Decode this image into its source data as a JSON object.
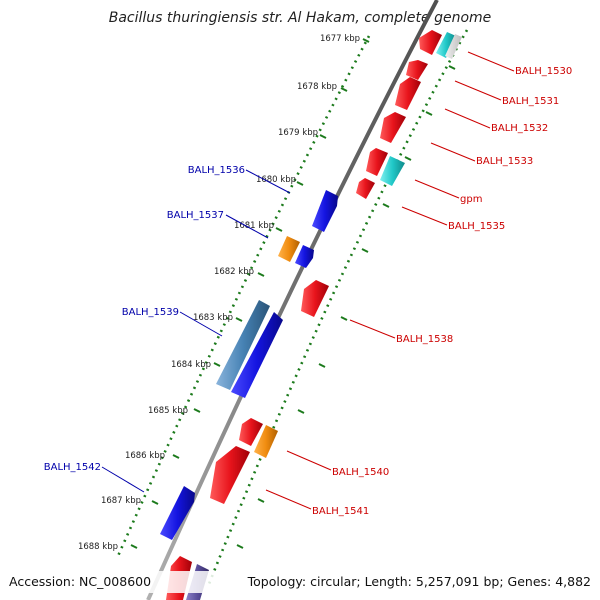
{
  "title": "Bacillus thuringiensis str. Al Hakam, complete genome",
  "footer": {
    "accession": "Accession: NC_008600",
    "topology": "Topology: circular; Length: 5,257,091 bp; Genes: 4,882"
  },
  "colors": {
    "backbone": "#808080",
    "ticks": "#1c7a1c",
    "cds_forward": "#e8141c",
    "cds_reverse": "#1414e0",
    "rna_or_other": "#f08c10",
    "cyan_feature": "#20c8c8",
    "steelblue_feature": "#4682b4",
    "slate_feature": "#5a4e9a",
    "forward_label": "#cc0000",
    "reverse_label": "#0000aa"
  },
  "kbp_labels": [
    "1677 kbp",
    "1678 kbp",
    "1679 kbp",
    "1680 kbp",
    "1681 kbp",
    "1682 kbp",
    "1683 kbp",
    "1684 kbp",
    "1685 kbp",
    "1686 kbp",
    "1687 kbp",
    "1688 kbp"
  ],
  "reverse_genes": [
    "BALH_1536",
    "BALH_1537",
    "BALH_1539",
    "BALH_1542"
  ],
  "forward_genes": [
    "BALH_1530",
    "BALH_1531",
    "BALH_1532",
    "BALH_1533",
    "gpm",
    "BALH_1535",
    "BALH_1538",
    "BALH_1540",
    "BALH_1541"
  ]
}
